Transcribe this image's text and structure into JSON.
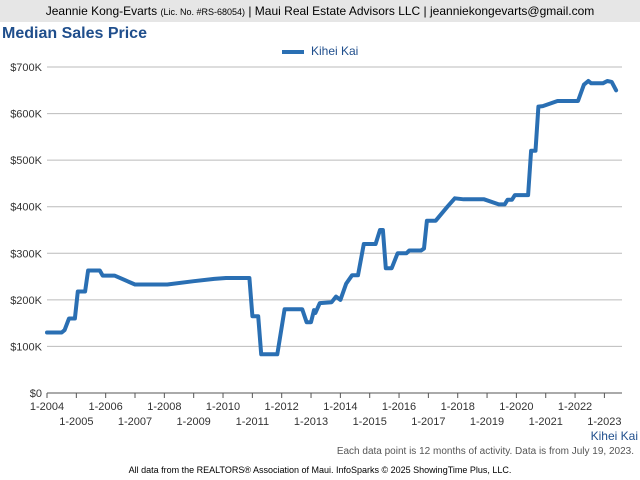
{
  "header": {
    "agent": "Jeannie Kong-Evarts",
    "license": "(Lic. No. #RS-68054)",
    "rest": "| Maui Real Estate Advisors LLC | jeanniekongevarts@gmail.com"
  },
  "note": "Each data point is 12 months of activity. Data is from July 19, 2023.",
  "footer": "All data from the REALTORS® Association of Maui. InfoSparks © 2025 ShowingTime Plus, LLC.",
  "colors": {
    "series": "#2a6fb3",
    "title": "#1f4e8c",
    "grid": "#bbbbbb"
  },
  "chart_data": {
    "type": "line",
    "title": "Median Sales Price",
    "ylim": [
      0,
      700000
    ],
    "xlim": [
      2004.0,
      2023.6
    ],
    "yticks": [
      {
        "v": 0,
        "label": "$0"
      },
      {
        "v": 100000,
        "label": "$100K"
      },
      {
        "v": 200000,
        "label": "$200K"
      },
      {
        "v": 300000,
        "label": "$300K"
      },
      {
        "v": 400000,
        "label": "$400K"
      },
      {
        "v": 500000,
        "label": "$500K"
      },
      {
        "v": 600000,
        "label": "$600K"
      },
      {
        "v": 700000,
        "label": "$700K"
      }
    ],
    "xticks": [
      {
        "v": 2004,
        "label": "1-2004"
      },
      {
        "v": 2005,
        "label": "1-2005"
      },
      {
        "v": 2006,
        "label": "1-2006"
      },
      {
        "v": 2007,
        "label": "1-2007"
      },
      {
        "v": 2008,
        "label": "1-2008"
      },
      {
        "v": 2009,
        "label": "1-2009"
      },
      {
        "v": 2010,
        "label": "1-2010"
      },
      {
        "v": 2011,
        "label": "1-2011"
      },
      {
        "v": 2012,
        "label": "1-2012"
      },
      {
        "v": 2013,
        "label": "1-2013"
      },
      {
        "v": 2014,
        "label": "1-2014"
      },
      {
        "v": 2015,
        "label": "1-2015"
      },
      {
        "v": 2016,
        "label": "1-2016"
      },
      {
        "v": 2017,
        "label": "1-2017"
      },
      {
        "v": 2018,
        "label": "1-2018"
      },
      {
        "v": 2019,
        "label": "1-2019"
      },
      {
        "v": 2020,
        "label": "1-2020"
      },
      {
        "v": 2021,
        "label": "1-2021"
      },
      {
        "v": 2022,
        "label": "1-2022"
      },
      {
        "v": 2023,
        "label": "1-2023"
      }
    ],
    "series": [
      {
        "name": "Kihei Kai",
        "points": [
          [
            2004.0,
            130000
          ],
          [
            2004.5,
            130000
          ],
          [
            2004.6,
            135000
          ],
          [
            2004.75,
            160000
          ],
          [
            2004.95,
            160000
          ],
          [
            2005.05,
            218000
          ],
          [
            2005.3,
            218000
          ],
          [
            2005.4,
            263000
          ],
          [
            2005.8,
            263000
          ],
          [
            2005.9,
            252000
          ],
          [
            2006.3,
            252000
          ],
          [
            2007.0,
            233000
          ],
          [
            2008.1,
            233000
          ],
          [
            2009.0,
            240000
          ],
          [
            2009.7,
            245000
          ],
          [
            2010.1,
            247000
          ],
          [
            2010.9,
            247000
          ],
          [
            2011.0,
            165000
          ],
          [
            2011.2,
            165000
          ],
          [
            2011.3,
            83000
          ],
          [
            2011.85,
            83000
          ],
          [
            2012.1,
            180000
          ],
          [
            2012.7,
            180000
          ],
          [
            2012.85,
            152000
          ],
          [
            2013.0,
            152000
          ],
          [
            2013.1,
            178000
          ],
          [
            2013.15,
            172000
          ],
          [
            2013.3,
            193000
          ],
          [
            2013.7,
            195000
          ],
          [
            2013.85,
            207000
          ],
          [
            2014.0,
            200000
          ],
          [
            2014.2,
            235000
          ],
          [
            2014.4,
            253000
          ],
          [
            2014.6,
            253000
          ],
          [
            2014.8,
            320000
          ],
          [
            2015.2,
            320000
          ],
          [
            2015.35,
            350000
          ],
          [
            2015.45,
            350000
          ],
          [
            2015.55,
            268000
          ],
          [
            2015.75,
            268000
          ],
          [
            2015.95,
            300000
          ],
          [
            2016.25,
            300000
          ],
          [
            2016.35,
            306000
          ],
          [
            2016.75,
            306000
          ],
          [
            2016.85,
            310000
          ],
          [
            2016.95,
            370000
          ],
          [
            2017.25,
            370000
          ],
          [
            2017.65,
            400000
          ],
          [
            2017.9,
            418000
          ],
          [
            2018.2,
            416000
          ],
          [
            2018.9,
            416000
          ],
          [
            2019.4,
            405000
          ],
          [
            2019.6,
            405000
          ],
          [
            2019.7,
            415000
          ],
          [
            2019.85,
            415000
          ],
          [
            2019.95,
            425000
          ],
          [
            2020.4,
            425000
          ],
          [
            2020.5,
            520000
          ],
          [
            2020.65,
            520000
          ],
          [
            2020.75,
            615000
          ],
          [
            2020.9,
            616000
          ],
          [
            2021.4,
            627000
          ],
          [
            2022.1,
            627000
          ],
          [
            2022.3,
            662000
          ],
          [
            2022.45,
            670000
          ],
          [
            2022.55,
            665000
          ],
          [
            2022.95,
            665000
          ],
          [
            2023.1,
            670000
          ],
          [
            2023.25,
            668000
          ],
          [
            2023.4,
            650000
          ]
        ]
      }
    ]
  }
}
